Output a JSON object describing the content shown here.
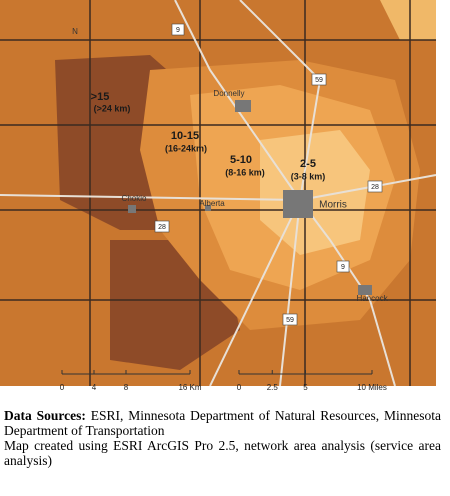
{
  "north": "N",
  "zones": [
    {
      "label": ">15",
      "sub": "(>24 km)"
    },
    {
      "label": "10-15",
      "sub": "(16-24km)"
    },
    {
      "label": "5-10",
      "sub": "(8-16 km)"
    },
    {
      "label": "2-5",
      "sub": "(3-8 km)"
    }
  ],
  "places": [
    "Donnelly",
    "Chokio",
    "Alberta",
    "Morris",
    "Hancock"
  ],
  "roads": [
    "9",
    "59",
    "28",
    "28",
    "9",
    "59"
  ],
  "scale_km": [
    {
      "value": 0,
      "label": "0"
    },
    {
      "value": 4,
      "label": "4"
    },
    {
      "value": 8,
      "label": "8"
    },
    {
      "value": 16,
      "label": "16 Km"
    }
  ],
  "scale_mi": [
    {
      "value": 0,
      "label": "0"
    },
    {
      "value": 2.5,
      "label": "2.5"
    },
    {
      "value": 5,
      "label": "5"
    },
    {
      "value": 10,
      "label": "10 Miles"
    }
  ],
  "caption": {
    "bold": "Data Sources:",
    "sources": "ESRI, Minnesota Department of Natural Resources, Minnesota Department of Transportation",
    "note": "Map created using ESRI ArcGIS Pro 2.5, network area analysis (service area analysis)"
  }
}
